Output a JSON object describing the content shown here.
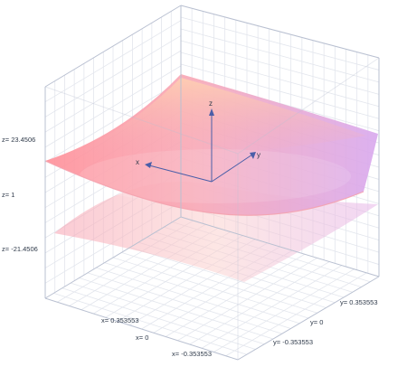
{
  "chart_data": {
    "type": "surface3d",
    "view": "3d-perspective-box",
    "grid": true,
    "surfaces": [
      {
        "kind": "saddle-upper",
        "opacity": 0.85
      },
      {
        "kind": "saddle-lower",
        "opacity": 0.35
      }
    ],
    "colors": {
      "surface_red": "#ff9a9a",
      "surface_peach": "#ffd1a6",
      "surface_purple": "#d9a6e8",
      "axis": "#4a5ea8",
      "grid": "#dfe3ea",
      "box": "#b8bfd0"
    },
    "axes": {
      "x": {
        "label": "x",
        "ticks": [
          "x= 0.353553",
          "x= 0",
          "x= -0.353553"
        ]
      },
      "y": {
        "label": "y",
        "ticks": [
          "y= 0.353553",
          "y= 0",
          "y= -0.353553"
        ]
      },
      "z": {
        "label": "z",
        "ticks": [
          "z= 23.4506",
          "z= 1",
          "z= -21.4506"
        ]
      }
    }
  }
}
